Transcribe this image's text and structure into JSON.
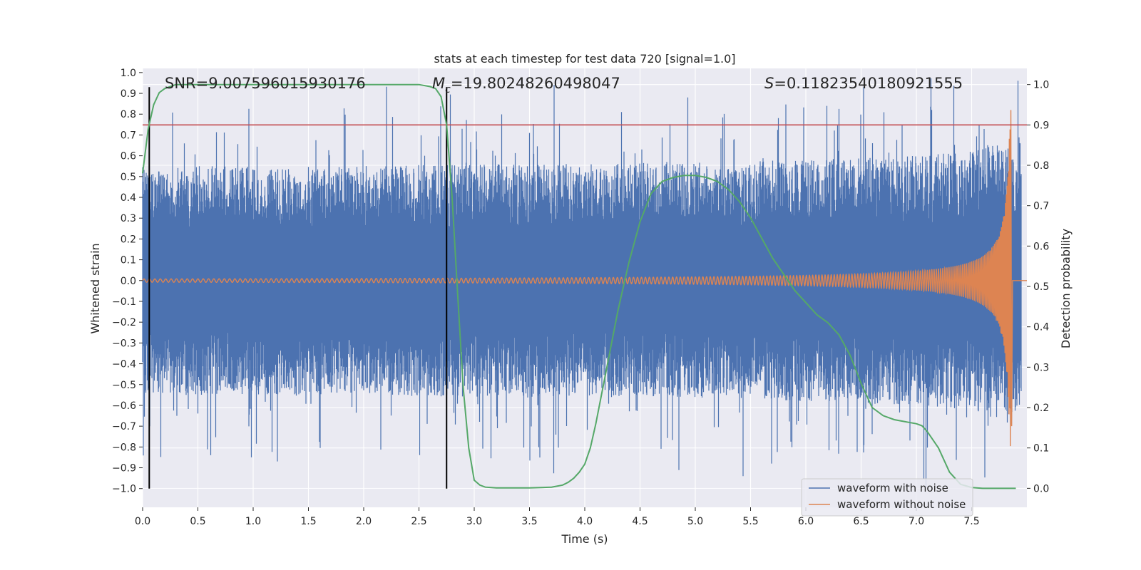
{
  "chart_data": {
    "type": "line",
    "title": "stats at each timestep for test data 720 [signal=1.0]",
    "xlabel": "Time (s)",
    "ylabel": "Whitened strain",
    "ylabel_right": "Detection probability",
    "xlim": [
      0.0,
      8.0
    ],
    "ylim": [
      -1.09,
      1.02
    ],
    "ylim_right": [
      -0.047,
      1.04
    ],
    "x_ticks": [
      "0.0",
      "0.5",
      "1.0",
      "1.5",
      "2.0",
      "2.5",
      "3.0",
      "3.5",
      "4.0",
      "4.5",
      "5.0",
      "5.5",
      "6.0",
      "6.5",
      "7.0",
      "7.5"
    ],
    "x_tick_values": [
      0.0,
      0.5,
      1.0,
      1.5,
      2.0,
      2.5,
      3.0,
      3.5,
      4.0,
      4.5,
      5.0,
      5.5,
      6.0,
      6.5,
      7.0,
      7.5
    ],
    "y_ticks": [
      "1.0",
      "0.9",
      "0.8",
      "0.7",
      "0.6",
      "0.5",
      "0.4",
      "0.3",
      "0.2",
      "0.1",
      "0.0",
      "−0.1",
      "−0.2",
      "−0.3",
      "−0.4",
      "−0.5",
      "−0.6",
      "−0.7",
      "−0.8",
      "−0.9",
      "−1.0"
    ],
    "y_tick_values": [
      1.0,
      0.9,
      0.8,
      0.7,
      0.6,
      0.5,
      0.4,
      0.3,
      0.2,
      0.1,
      0.0,
      -0.1,
      -0.2,
      -0.3,
      -0.4,
      -0.5,
      -0.6,
      -0.7,
      -0.8,
      -0.9,
      -1.0
    ],
    "y_ticks_right": [
      "1.0",
      "0.9",
      "0.8",
      "0.7",
      "0.6",
      "0.5",
      "0.4",
      "0.3",
      "0.2",
      "0.1",
      "0.0"
    ],
    "y_tick_values_right": [
      1.0,
      0.9,
      0.8,
      0.7,
      0.6,
      0.5,
      0.4,
      0.3,
      0.2,
      0.1,
      0.0
    ],
    "annotations": {
      "snr": "SNR=9.007596015930176",
      "mc_symbol": "M",
      "mc_sub": "c",
      "mc_value": "=19.80248260498047",
      "s_symbol": "S",
      "s_value": "=0.11823540180921555"
    },
    "vertical_markers": [
      0.06,
      2.75
    ],
    "threshold": 0.9,
    "noisy_envelope": {
      "x": [
        0.0,
        1.0,
        2.0,
        3.0,
        4.0,
        5.0,
        6.0,
        7.0,
        7.5,
        7.85
      ],
      "amplitude": [
        0.55,
        0.55,
        0.55,
        0.56,
        0.56,
        0.57,
        0.58,
        0.6,
        0.62,
        0.7
      ]
    },
    "clean_chirp": {
      "x_start": 0.0,
      "x_merger": 7.85,
      "x_end": 8.0,
      "amp_start": 0.008,
      "amp_peak": 0.82,
      "amp_min": -0.7
    },
    "series": [
      {
        "name": "waveform with noise",
        "color": "#4c72b0",
        "axis": "left"
      },
      {
        "name": "waveform without noise",
        "color": "#dd8452",
        "axis": "left"
      },
      {
        "name": "detection probability",
        "color": "#55a868",
        "axis": "right",
        "x": [
          0.0,
          0.05,
          0.1,
          0.15,
          0.2,
          0.25,
          0.3,
          0.4,
          0.5,
          1.0,
          2.0,
          2.5,
          2.6,
          2.65,
          2.7,
          2.75,
          2.8,
          2.85,
          2.9,
          2.95,
          3.0,
          3.05,
          3.1,
          3.2,
          3.5,
          3.7,
          3.8,
          3.85,
          3.9,
          3.95,
          4.0,
          4.05,
          4.1,
          4.2,
          4.3,
          4.4,
          4.5,
          4.6,
          4.7,
          4.8,
          4.9,
          5.0,
          5.1,
          5.2,
          5.3,
          5.4,
          5.5,
          5.6,
          5.7,
          5.8,
          5.9,
          6.0,
          6.1,
          6.2,
          6.3,
          6.4,
          6.5,
          6.6,
          6.7,
          6.8,
          6.9,
          7.0,
          7.05,
          7.1,
          7.2,
          7.3,
          7.4,
          7.5,
          7.6,
          7.7,
          7.8,
          7.9
        ],
        "values": [
          0.78,
          0.89,
          0.95,
          0.98,
          0.99,
          0.995,
          1.0,
          1.0,
          1.0,
          1.0,
          1.0,
          1.0,
          0.995,
          0.99,
          0.97,
          0.9,
          0.72,
          0.48,
          0.25,
          0.1,
          0.02,
          0.008,
          0.003,
          0.001,
          0.001,
          0.003,
          0.008,
          0.015,
          0.025,
          0.04,
          0.06,
          0.1,
          0.16,
          0.3,
          0.44,
          0.56,
          0.66,
          0.73,
          0.76,
          0.77,
          0.775,
          0.775,
          0.77,
          0.76,
          0.74,
          0.71,
          0.67,
          0.62,
          0.57,
          0.53,
          0.49,
          0.46,
          0.43,
          0.41,
          0.38,
          0.33,
          0.26,
          0.2,
          0.18,
          0.17,
          0.165,
          0.16,
          0.155,
          0.14,
          0.1,
          0.04,
          0.01,
          0.002,
          0.0,
          0.0,
          0.0,
          0.0
        ]
      }
    ],
    "legend_position": "lower-right",
    "grid": true
  }
}
